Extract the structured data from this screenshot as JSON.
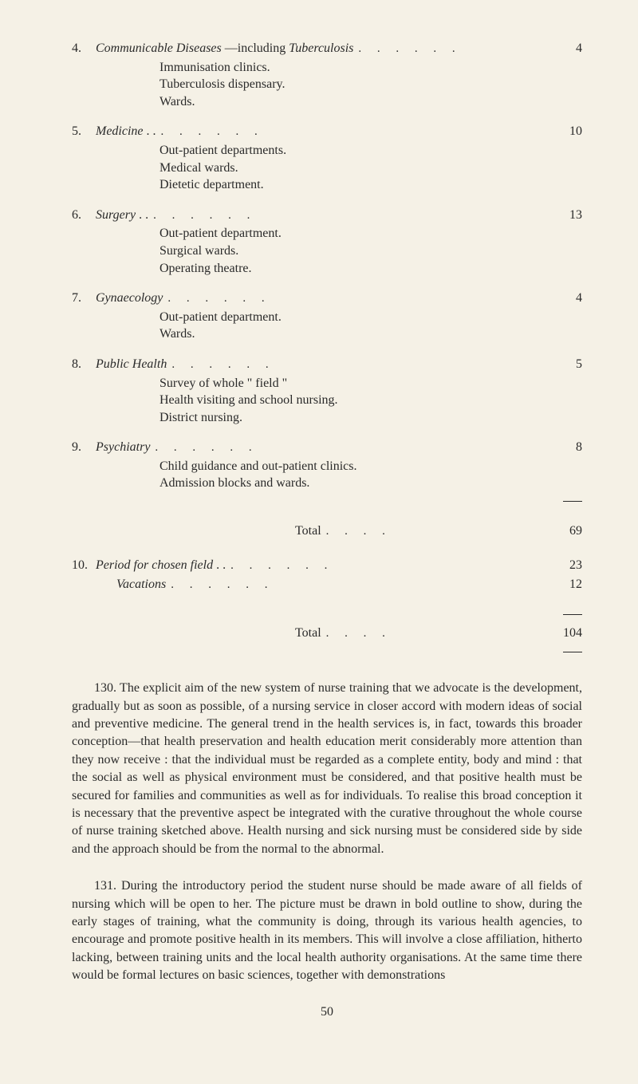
{
  "items": [
    {
      "num": "4.",
      "title_html": "<span class='italic'>Communicable Diseases</span> —including <span class='italic'>Tuberculosis</span>",
      "page": "4",
      "subs": [
        "Immunisation clinics.",
        "Tuberculosis dispensary.",
        "Wards."
      ]
    },
    {
      "num": "5.",
      "title_html": "<span class='italic'>Medicine</span> . .",
      "page": "10",
      "subs": [
        "Out-patient departments.",
        "Medical wards.",
        "Dietetic department."
      ]
    },
    {
      "num": "6.",
      "title_html": "<span class='italic'>Surgery</span> . .",
      "page": "13",
      "subs": [
        "Out-patient department.",
        "Surgical wards.",
        "Operating theatre."
      ]
    },
    {
      "num": "7.",
      "title_html": "<span class='italic'>Gynaecology</span>",
      "page": "4",
      "subs": [
        "Out-patient department.",
        "Wards."
      ]
    },
    {
      "num": "8.",
      "title_html": "<span class='italic'>Public Health</span>",
      "page": "5",
      "subs": [
        "Survey of whole \" field \"",
        "Health visiting and school nursing.",
        "District nursing."
      ]
    },
    {
      "num": "9.",
      "title_html": "<span class='italic'>Psychiatry</span>",
      "page": "8",
      "subs": [
        "Child guidance and out-patient clinics.",
        "Admission blocks and wards."
      ],
      "has_dash_after": true
    }
  ],
  "total1": {
    "label": "Total",
    "value": "69"
  },
  "item10": {
    "num": "10.",
    "title_html": "<span class='italic'>Period for chosen field</span> . .",
    "page": "23"
  },
  "vacations": {
    "title_html": "<span class='italic'>Vacations</span>",
    "page": "12"
  },
  "total2": {
    "label": "Total",
    "value": "104"
  },
  "para130": "130. The explicit aim of the new system of nurse training that we advocate is the development, gradually but as soon as possible, of a nursing service in closer accord with modern ideas of social and preventive medicine. The general trend in the health services is, in fact, towards this broader conception—that health preservation and health education merit considerably more attention than they now receive : that the individual must be regarded as a complete entity, body and mind : that the social as well as physical environment must be considered, and that positive health must be secured for families and communities as well as for individuals. To realise this broad conception it is necessary that the preventive aspect be integrated with the curative throughout the whole course of nurse training sketched above. Health nursing and sick nursing must be considered side by side and the approach should be from the normal to the abnormal.",
  "para131": "131. During the introductory period the student nurse should be made aware of all fields of nursing which will be open to her. The picture must be drawn in bold outline to show, during the early stages of training, what the community is doing, through its various health agencies, to encourage and promote positive health in its members. This will involve a close affiliation, hitherto lacking, between training units and the local health authority organisations. At the same time there would be formal lectures on basic sciences, together with demonstrations",
  "pageNumber": "50",
  "dots": ". . . . . .",
  "dots_short": ". . . ."
}
